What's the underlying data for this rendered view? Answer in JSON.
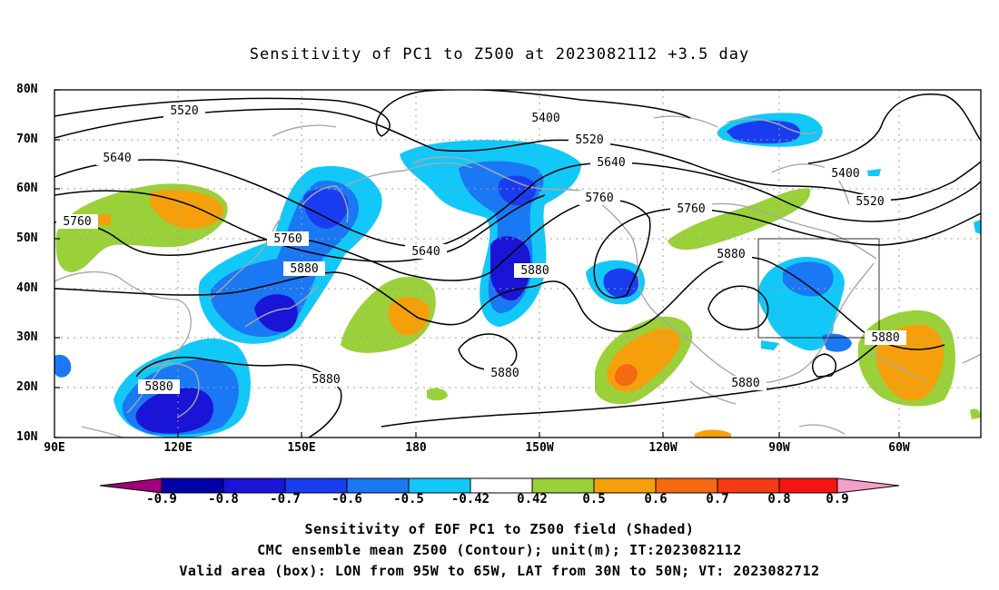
{
  "title": "Sensitivity of PC1 to Z500 at 2023082112 +3.5 day",
  "lat_labels": [
    "80N",
    "70N",
    "60N",
    "50N",
    "40N",
    "30N",
    "20N",
    "10N"
  ],
  "lon_labels": [
    "90E",
    "120E",
    "150E",
    "180",
    "150W",
    "120W",
    "90W",
    "60W"
  ],
  "contour_labels": {
    "c5520a": "5520",
    "c5400a": "5400",
    "c5520b": "5520",
    "c5640a": "5640",
    "c5640b": "5640",
    "c5760a": "5760",
    "c5760b": "5760",
    "c5760c": "5760",
    "c5760d": "5760",
    "c5640c": "5640",
    "c5880a": "5880",
    "c5880b": "5880",
    "c5880c": "5880",
    "c5880d": "5880",
    "c5880e": "5880",
    "c5880f": "5880",
    "c5880g": "5880",
    "c5880h": "5880",
    "c5400b": "5400",
    "c5520c": "5520"
  },
  "colorbar": {
    "ticks": [
      "-0.9",
      "-0.8",
      "-0.7",
      "-0.6",
      "-0.5",
      "-0.42",
      "0.42",
      "0.5",
      "0.6",
      "0.7",
      "0.8",
      "0.9"
    ],
    "colors": [
      "#a0007a",
      "#0000a8",
      "#1a14d6",
      "#1a3cf0",
      "#1a78f5",
      "#1ab0f5",
      "#12c8f8",
      "#ffffff",
      "#9ad03a",
      "#f5a00a",
      "#f56a12",
      "#f53a14",
      "#f51414",
      "#f5a0c8"
    ]
  },
  "shading_colors": {
    "blue_dark": "#1a14d6",
    "blue_mid": "#1a3cf0",
    "blue": "#1a78f5",
    "cyan": "#12c8f8",
    "green": "#9ad03a",
    "orange": "#f5a00a",
    "orange_dark": "#f56a12"
  },
  "footer": {
    "line1": "Sensitivity of EOF PC1 to Z500 field (Shaded)",
    "line2": "CMC ensemble mean Z500 (Contour); unit(m); IT:2023082112",
    "line3": "Valid area (box): LON from 95W to 65W, LAT from 30N to 50N; VT: 2023082712"
  }
}
